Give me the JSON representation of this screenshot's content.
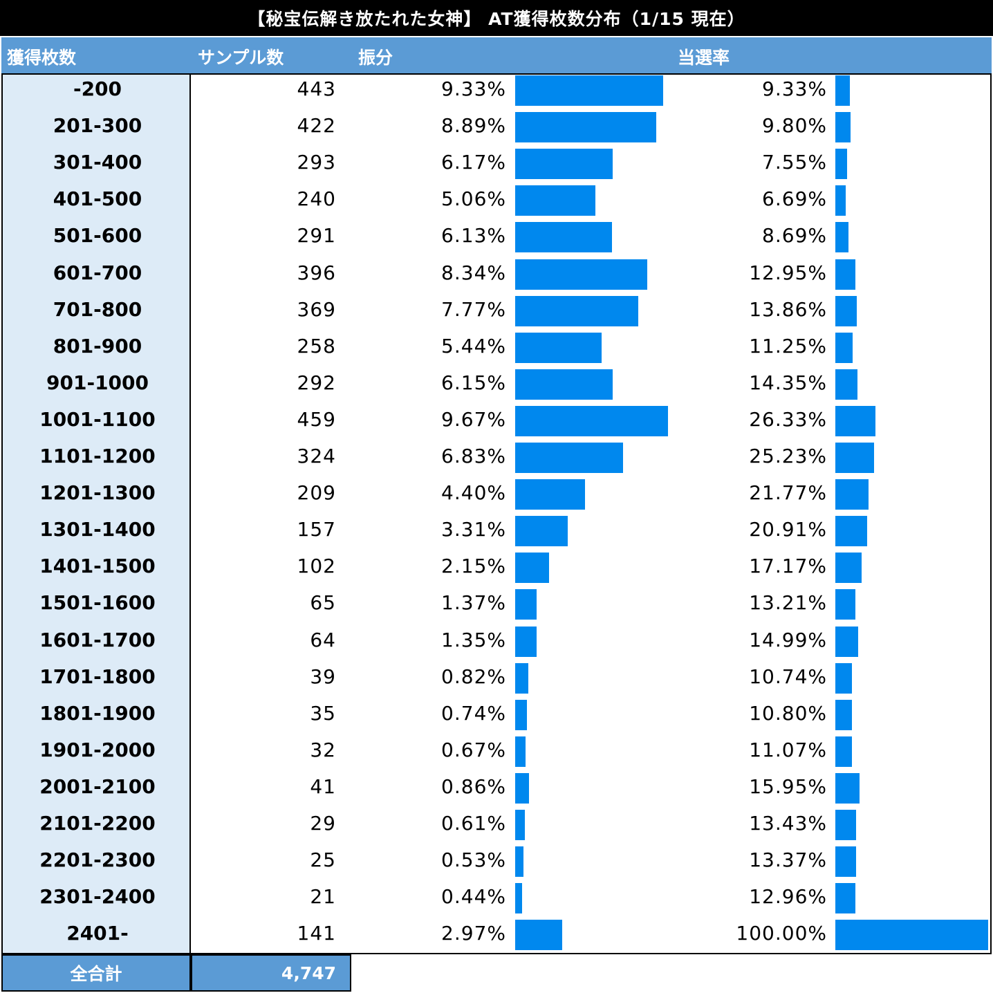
{
  "title": "【秘宝伝解き放たれた女神】 AT獲得枚数分布（1/15 現在）",
  "headers": {
    "range": "獲得枚数",
    "samples": "サンプル数",
    "distribution": "振分",
    "hit_rate": "当選率"
  },
  "footer": {
    "label": "全合計",
    "total": "4,747"
  },
  "colors": {
    "bar": "#0088ee",
    "header_bg": "#5b9bd5",
    "range_bg": "#ddebf7",
    "title_bg": "#000000"
  },
  "chart_data": {
    "type": "table",
    "title": "【秘宝伝解き放たれた女神】 AT獲得枚数分布（1/15 現在）",
    "columns": [
      "獲得枚数",
      "サンプル数",
      "振分",
      "当選率"
    ],
    "rows": [
      {
        "range": "-200",
        "samples": "443",
        "dist": "9.33%",
        "dist_value": 9.33,
        "rate": "9.33%",
        "rate_value": 9.33
      },
      {
        "range": "201-300",
        "samples": "422",
        "dist": "8.89%",
        "dist_value": 8.89,
        "rate": "9.80%",
        "rate_value": 9.8
      },
      {
        "range": "301-400",
        "samples": "293",
        "dist": "6.17%",
        "dist_value": 6.17,
        "rate": "7.55%",
        "rate_value": 7.55
      },
      {
        "range": "401-500",
        "samples": "240",
        "dist": "5.06%",
        "dist_value": 5.06,
        "rate": "6.69%",
        "rate_value": 6.69
      },
      {
        "range": "501-600",
        "samples": "291",
        "dist": "6.13%",
        "dist_value": 6.13,
        "rate": "8.69%",
        "rate_value": 8.69
      },
      {
        "range": "601-700",
        "samples": "396",
        "dist": "8.34%",
        "dist_value": 8.34,
        "rate": "12.95%",
        "rate_value": 12.95
      },
      {
        "range": "701-800",
        "samples": "369",
        "dist": "7.77%",
        "dist_value": 7.77,
        "rate": "13.86%",
        "rate_value": 13.86
      },
      {
        "range": "801-900",
        "samples": "258",
        "dist": "5.44%",
        "dist_value": 5.44,
        "rate": "11.25%",
        "rate_value": 11.25
      },
      {
        "range": "901-1000",
        "samples": "292",
        "dist": "6.15%",
        "dist_value": 6.15,
        "rate": "14.35%",
        "rate_value": 14.35
      },
      {
        "range": "1001-1100",
        "samples": "459",
        "dist": "9.67%",
        "dist_value": 9.67,
        "rate": "26.33%",
        "rate_value": 26.33
      },
      {
        "range": "1101-1200",
        "samples": "324",
        "dist": "6.83%",
        "dist_value": 6.83,
        "rate": "25.23%",
        "rate_value": 25.23
      },
      {
        "range": "1201-1300",
        "samples": "209",
        "dist": "4.40%",
        "dist_value": 4.4,
        "rate": "21.77%",
        "rate_value": 21.77
      },
      {
        "range": "1301-1400",
        "samples": "157",
        "dist": "3.31%",
        "dist_value": 3.31,
        "rate": "20.91%",
        "rate_value": 20.91
      },
      {
        "range": "1401-1500",
        "samples": "102",
        "dist": "2.15%",
        "dist_value": 2.15,
        "rate": "17.17%",
        "rate_value": 17.17
      },
      {
        "range": "1501-1600",
        "samples": "65",
        "dist": "1.37%",
        "dist_value": 1.37,
        "rate": "13.21%",
        "rate_value": 13.21
      },
      {
        "range": "1601-1700",
        "samples": "64",
        "dist": "1.35%",
        "dist_value": 1.35,
        "rate": "14.99%",
        "rate_value": 14.99
      },
      {
        "range": "1701-1800",
        "samples": "39",
        "dist": "0.82%",
        "dist_value": 0.82,
        "rate": "10.74%",
        "rate_value": 10.74
      },
      {
        "range": "1801-1900",
        "samples": "35",
        "dist": "0.74%",
        "dist_value": 0.74,
        "rate": "10.80%",
        "rate_value": 10.8
      },
      {
        "range": "1901-2000",
        "samples": "32",
        "dist": "0.67%",
        "dist_value": 0.67,
        "rate": "11.07%",
        "rate_value": 11.07
      },
      {
        "range": "2001-2100",
        "samples": "41",
        "dist": "0.86%",
        "dist_value": 0.86,
        "rate": "15.95%",
        "rate_value": 15.95
      },
      {
        "range": "2101-2200",
        "samples": "29",
        "dist": "0.61%",
        "dist_value": 0.61,
        "rate": "13.43%",
        "rate_value": 13.43
      },
      {
        "range": "2201-2300",
        "samples": "25",
        "dist": "0.53%",
        "dist_value": 0.53,
        "rate": "13.37%",
        "rate_value": 13.37
      },
      {
        "range": "2301-2400",
        "samples": "21",
        "dist": "0.44%",
        "dist_value": 0.44,
        "rate": "12.96%",
        "rate_value": 12.96
      },
      {
        "range": "2401-",
        "samples": "141",
        "dist": "2.97%",
        "dist_value": 2.97,
        "rate": "100.00%",
        "rate_value": 100.0
      }
    ]
  }
}
